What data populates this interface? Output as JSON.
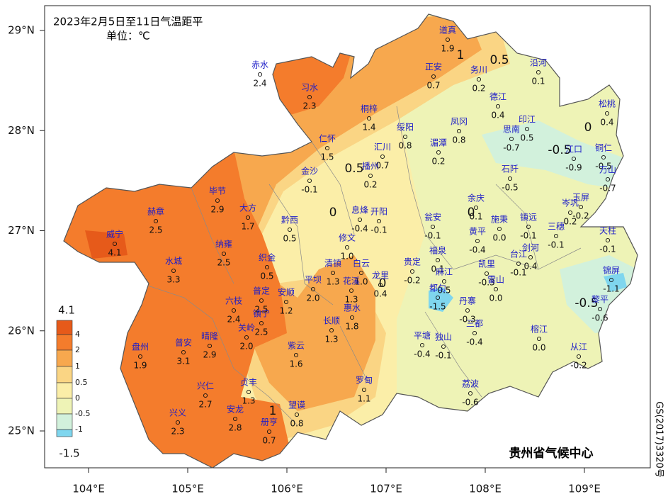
{
  "title": "2023年2月5日至11日气温距平",
  "unit": "单位：℃",
  "credit": "贵州省气候中心",
  "map_number": "GS(2017)3320号",
  "lon_ticks": [
    {
      "value": 104,
      "label": "104°E"
    },
    {
      "value": 105,
      "label": "105°E"
    },
    {
      "value": 106,
      "label": "106°E"
    },
    {
      "value": 107,
      "label": "107°E"
    },
    {
      "value": 108,
      "label": "108°E"
    },
    {
      "value": 109,
      "label": "109°E"
    }
  ],
  "lat_ticks": [
    {
      "value": 29,
      "label": "29°N"
    },
    {
      "value": 28,
      "label": "28°N"
    },
    {
      "value": 27,
      "label": "27°N"
    },
    {
      "value": 26,
      "label": "26°N"
    },
    {
      "value": 25,
      "label": "25°N"
    }
  ],
  "legend": {
    "max": "4.1",
    "min": "-1.5",
    "levels": [
      {
        "label": "4",
        "color": "#e65a1a"
      },
      {
        "label": "2",
        "color": "#f47c2c"
      },
      {
        "label": "1",
        "color": "#f7a84e"
      },
      {
        "label": "0.5",
        "color": "#fad584"
      },
      {
        "label": "0",
        "color": "#fbeea8"
      },
      {
        "label": "-0.5",
        "color": "#eef3b6"
      },
      {
        "label": "-1",
        "color": "#d2f1dc"
      }
    ],
    "top_color": "#e65a1a",
    "bottom_color": "#7fd6ee"
  },
  "contour_labels": [
    "1",
    "0.5",
    "0.5",
    "0",
    "-0.5",
    "0",
    "0",
    "0",
    "-0.5",
    "1"
  ],
  "stations": [
    {
      "name": "道真",
      "value": "1.9"
    },
    {
      "name": "正安",
      "value": "0.7"
    },
    {
      "name": "务川",
      "value": "0.2"
    },
    {
      "name": "沿河",
      "value": "0.1"
    },
    {
      "name": "赤水",
      "value": "2.4"
    },
    {
      "name": "习水",
      "value": "2.3"
    },
    {
      "name": "桐梓",
      "value": "1.4"
    },
    {
      "name": "绥阳",
      "value": "0.8"
    },
    {
      "name": "凤冈",
      "value": "0.8"
    },
    {
      "name": "德江",
      "value": "0.4"
    },
    {
      "name": "印江",
      "value": "0.5"
    },
    {
      "name": "思南",
      "value": "-0.7"
    },
    {
      "name": "松桃",
      "value": "0.4"
    },
    {
      "name": "仁怀",
      "value": "1.5"
    },
    {
      "name": "汇川",
      "value": "0.7"
    },
    {
      "name": "湄潭",
      "value": "0.2"
    },
    {
      "name": "江口",
      "value": "-0.9"
    },
    {
      "name": "铜仁",
      "value": "-0.5"
    },
    {
      "name": "万山",
      "value": "-0.7"
    },
    {
      "name": "金沙",
      "value": "-0.1"
    },
    {
      "name": "播州",
      "value": "0.2"
    },
    {
      "name": "石阡",
      "value": "-0.5"
    },
    {
      "name": "余庆",
      "value": "0.1"
    },
    {
      "name": "岑巩",
      "value": "0.2"
    },
    {
      "name": "玉屏",
      "value": "-0.2"
    },
    {
      "name": "毕节",
      "value": "2.9"
    },
    {
      "name": "赫章",
      "value": "2.5"
    },
    {
      "name": "大方",
      "value": "1.7"
    },
    {
      "name": "黔西",
      "value": "0.5"
    },
    {
      "name": "息烽",
      "value": "-0.4"
    },
    {
      "name": "开阳",
      "value": "-0.1"
    },
    {
      "name": "瓮安",
      "value": "-0.1"
    },
    {
      "name": "施秉",
      "value": "0.0"
    },
    {
      "name": "镇远",
      "value": "-0.1"
    },
    {
      "name": "三穗",
      "value": "-0.1"
    },
    {
      "name": "天柱",
      "value": "-0.1"
    },
    {
      "name": "威宁",
      "value": "4.1"
    },
    {
      "name": "纳雍",
      "value": "2.5"
    },
    {
      "name": "修文",
      "value": "1.0"
    },
    {
      "name": "黄平",
      "value": "-0.4"
    },
    {
      "name": "织金",
      "value": "0.5"
    },
    {
      "name": "清镇",
      "value": "1.3"
    },
    {
      "name": "白云",
      "value": "1.0"
    },
    {
      "name": "贵定",
      "value": "-0.2"
    },
    {
      "name": "福泉",
      "value": "0.1"
    },
    {
      "name": "凯里",
      "value": "-0.3"
    },
    {
      "name": "台江",
      "value": "-0.1"
    },
    {
      "name": "剑河",
      "value": "0.4"
    },
    {
      "name": "水城",
      "value": "3.3"
    },
    {
      "name": "平坝",
      "value": "2.0"
    },
    {
      "name": "花溪",
      "value": "1.3"
    },
    {
      "name": "龙里",
      "value": "0.4"
    },
    {
      "name": "麻江",
      "value": "0.5"
    },
    {
      "name": "雷山",
      "value": "0.0"
    },
    {
      "name": "锦屏",
      "value": "-1.1"
    },
    {
      "name": "六枝",
      "value": "2.4"
    },
    {
      "name": "普定",
      "value": "2.5"
    },
    {
      "name": "安顺",
      "value": "1.2"
    },
    {
      "name": "都匀",
      "value": "-1.5"
    },
    {
      "name": "丹寨",
      "value": "-0.3"
    },
    {
      "name": "惠水",
      "value": "1.8"
    },
    {
      "name": "黎平",
      "value": "-0.6"
    },
    {
      "name": "长顺",
      "value": "1.3"
    },
    {
      "name": "镇宁",
      "value": "2.5"
    },
    {
      "name": "关岭",
      "value": "2.0"
    },
    {
      "name": "晴隆",
      "value": "2.9"
    },
    {
      "name": "普安",
      "value": "3.1"
    },
    {
      "name": "盘州",
      "value": "1.9"
    },
    {
      "name": "紫云",
      "value": "1.6"
    },
    {
      "name": "三都",
      "value": "-0.4"
    },
    {
      "name": "榕江",
      "value": "0.0"
    },
    {
      "name": "平塘",
      "value": "-0.4"
    },
    {
      "name": "独山",
      "value": "-0.1"
    },
    {
      "name": "从江",
      "value": "-0.2"
    },
    {
      "name": "兴仁",
      "value": "2.7"
    },
    {
      "name": "贞丰",
      "value": "1.3"
    },
    {
      "name": "罗甸",
      "value": "1.1"
    },
    {
      "name": "荔波",
      "value": "-0.6"
    },
    {
      "name": "望谟",
      "value": "0.8"
    },
    {
      "name": "兴义",
      "value": "2.3"
    },
    {
      "name": "安龙",
      "value": "2.8"
    },
    {
      "name": "册亨",
      "value": "0.7"
    }
  ]
}
